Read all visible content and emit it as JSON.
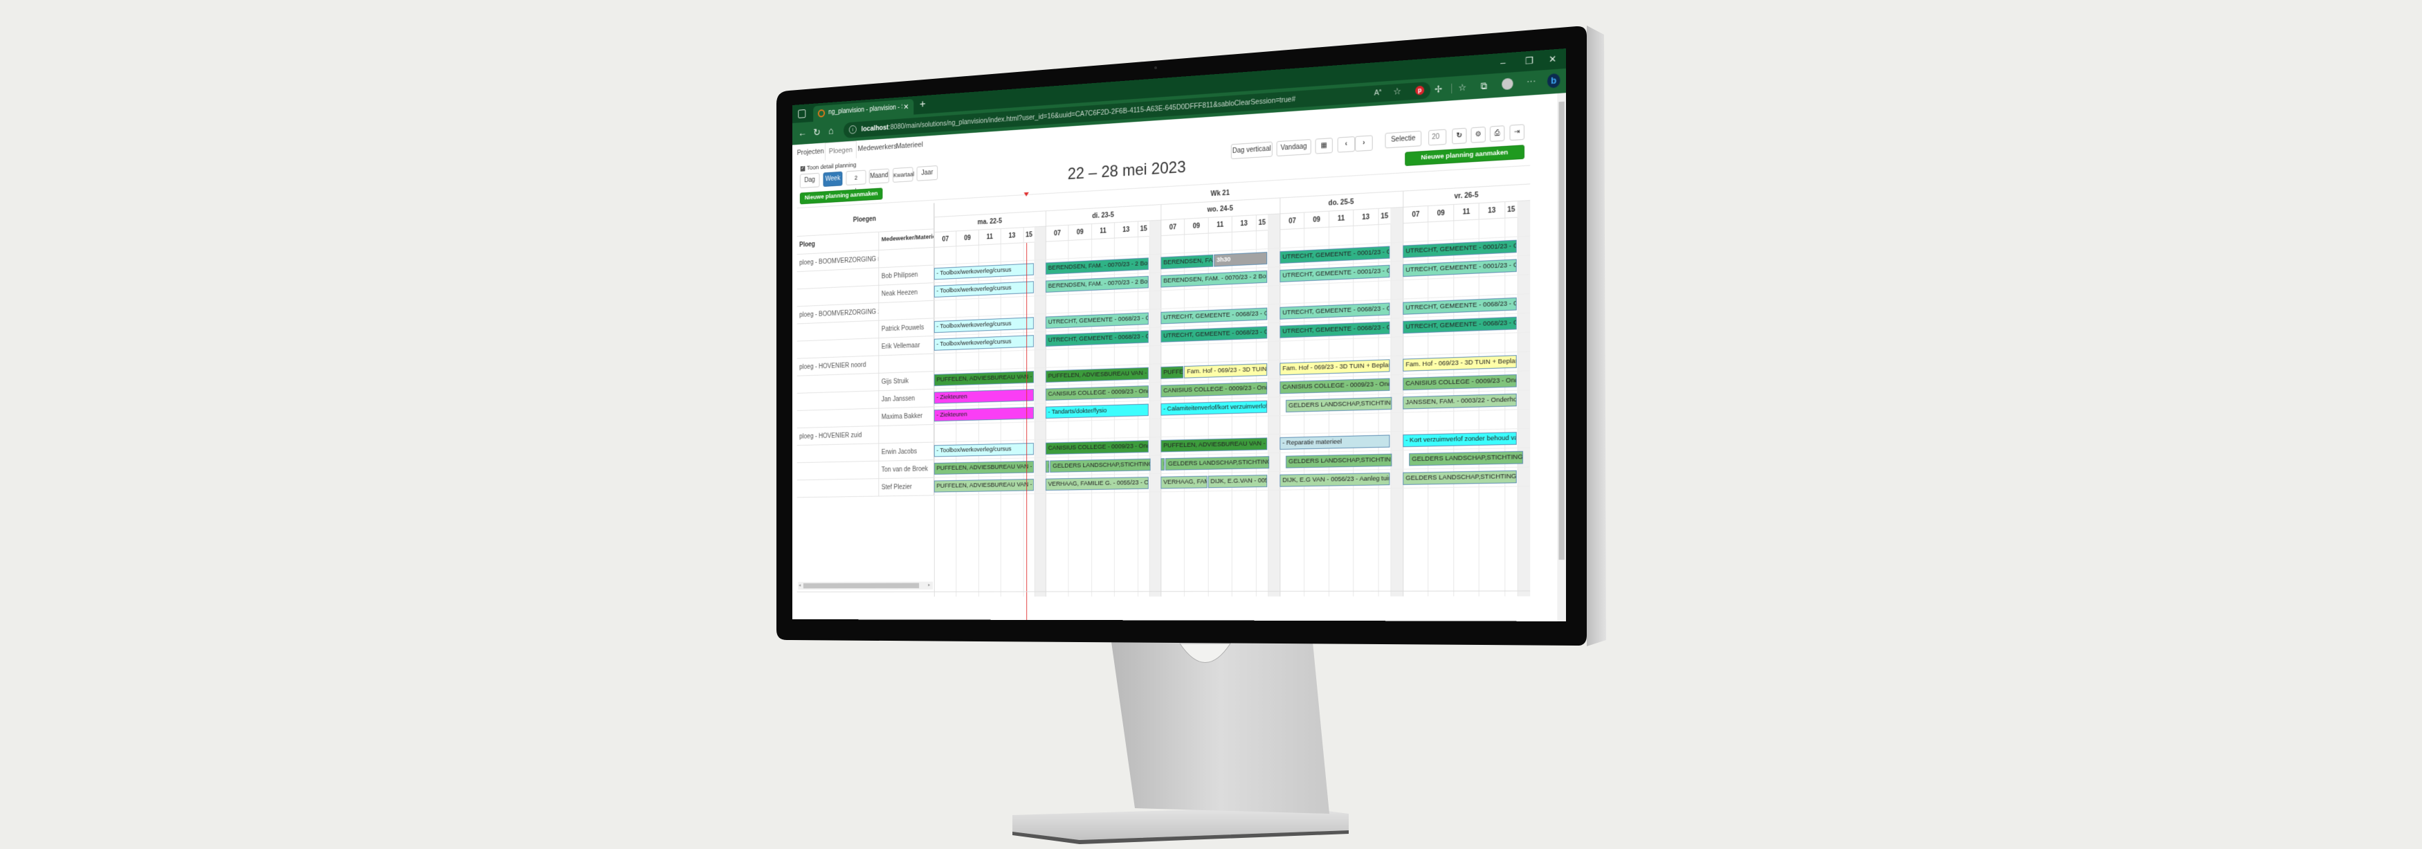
{
  "browser": {
    "tab_title": "ng_planvision - planvision - Serv",
    "url_host": "localhost",
    "url_path": ":8080/main/solutions/ng_planvision/index.html?user_id=16&uuid=CA7C6F2D-2F6B-4115-A63E-645D0DFFF811&sabloClearSession=true#",
    "window_controls": {
      "minimize": "–",
      "restore": "❐",
      "close": "✕"
    },
    "toolbar_icons": [
      "read-aloud-icon",
      "favorite-settings-icon",
      "pinterest-icon",
      "extensions-icon",
      "favorites-icon",
      "collections-icon",
      "profile-icon",
      "more-icon",
      "bing-icon"
    ]
  },
  "app": {
    "nav_tabs": [
      {
        "label": "Projecten",
        "active": false
      },
      {
        "label": "Ploegen",
        "active": true
      },
      {
        "label": "Medewerkers",
        "active": false
      },
      {
        "label": "Materieel",
        "active": false
      }
    ],
    "detail_checkbox": {
      "label": "Toon detail planning",
      "checked": true
    },
    "view_buttons": [
      {
        "label": "Dag",
        "active": false
      },
      {
        "label": "Week",
        "active": true
      },
      {
        "label": "2 weken",
        "active": false
      },
      {
        "label": "Maand",
        "active": false
      },
      {
        "label": "Kwartaal",
        "active": false
      },
      {
        "label": "Jaar",
        "active": false
      }
    ],
    "new_planning_label": "Nieuwe planning aanmaken",
    "period_title": "22 – 28 mei 2023",
    "toolbar": {
      "dag_verticaal": "Dag verticaal",
      "vandaag": "Vandaag",
      "selectie": "Selectie",
      "selection_count": "20"
    },
    "accent_green": "#1f9a1f",
    "accent_blue": "#337ab7"
  },
  "grid": {
    "header_ploegen": "Ploegen",
    "col_ploeg": "Ploeg",
    "col_member": "Medewerker/Materieel",
    "week_label": "Wk 21",
    "days": [
      "ma. 22-5",
      "di. 23-5",
      "wo. 24-5",
      "do. 25-5",
      "vr. 26-5"
    ],
    "hours": [
      "07",
      "09",
      "11",
      "13",
      "15"
    ],
    "now_marker": {
      "day": 0,
      "hour": 15.3,
      "color": "#e03030"
    },
    "colors": {
      "toolbox": "#cdfdfd",
      "teal_dark": "#2fb386",
      "teal_light": "#84dcba",
      "green_dark": "#3c9c3c",
      "green_mid": "#80c47c",
      "green_light": "#abd9a5",
      "yellow": "#ffffa8",
      "magenta": "#fa3ef5",
      "cyan": "#3cfdfd",
      "gray": "#a3a3a3",
      "repair": "#c4e3ea"
    },
    "rows": [
      {
        "ploeg": "ploeg - BOOMVERZORGING noord",
        "member": "",
        "bars": []
      },
      {
        "ploeg": "",
        "member": "Bob Philipsen",
        "bars": [
          {
            "day": 0,
            "from": 7,
            "to": 16,
            "label": "- Toolbox/werkoverleg/cursus",
            "color": "toolbox"
          },
          {
            "day": 1,
            "from": 7,
            "to": 16,
            "label": "BERENDSEN, FAM. - 0070/23 - 2 Bomen Roo",
            "color": "teal_dark"
          },
          {
            "day": 2,
            "from": 7,
            "to": 11.5,
            "label": "BERENDSEN, FAM. - 0070/23",
            "color": "teal_dark"
          },
          {
            "day": 2,
            "from": 11.5,
            "to": 16,
            "label": "3h30",
            "color": "gray"
          },
          {
            "day": 3,
            "from": 7,
            "to": 16,
            "label": "UTRECHT, GEMEENTE - 0001/23 - Gemeente",
            "color": "teal_dark"
          },
          {
            "day": 4,
            "from": 7,
            "to": 16,
            "label": "UTRECHT, GEMEENTE - 0001/23 - Gemeente",
            "color": "teal_dark"
          }
        ]
      },
      {
        "ploeg": "",
        "member": "Neak Heezen",
        "bars": [
          {
            "day": 0,
            "from": 7,
            "to": 16,
            "label": "- Toolbox/werkoverleg/cursus",
            "color": "toolbox"
          },
          {
            "day": 1,
            "from": 7,
            "to": 16,
            "label": "BERENDSEN, FAM. - 0070/23 - 2 Bomen Roo",
            "color": "teal_light"
          },
          {
            "day": 2,
            "from": 7,
            "to": 16,
            "label": "BERENDSEN, FAM. - 0070/23 - 2 Bomen Roo",
            "color": "teal_light"
          },
          {
            "day": 3,
            "from": 7,
            "to": 16,
            "label": "UTRECHT, GEMEENTE - 0001/23 - Gemeente",
            "color": "teal_light"
          },
          {
            "day": 4,
            "from": 7,
            "to": 16,
            "label": "UTRECHT, GEMEENTE - 0001/23 - Gemeente",
            "color": "teal_light"
          }
        ]
      },
      {
        "ploeg": "ploeg - BOOMVERZORGING zuid",
        "member": "",
        "bars": []
      },
      {
        "ploeg": "",
        "member": "Patrick Pouwels",
        "bars": [
          {
            "day": 0,
            "from": 7,
            "to": 16,
            "label": "- Toolbox/werkoverleg/cursus",
            "color": "toolbox"
          },
          {
            "day": 1,
            "from": 7,
            "to": 16,
            "label": "UTRECHT, GEMEENTE - 0068/23 - Gemeente",
            "color": "teal_light"
          },
          {
            "day": 2,
            "from": 7,
            "to": 16,
            "label": "UTRECHT, GEMEENTE - 0068/23 - Gemeente",
            "color": "teal_light"
          },
          {
            "day": 3,
            "from": 7,
            "to": 16,
            "label": "UTRECHT, GEMEENTE - 0068/23 - Gemeente",
            "color": "teal_light"
          },
          {
            "day": 4,
            "from": 7,
            "to": 16,
            "label": "UTRECHT, GEMEENTE - 0068/23 - Gemeente",
            "color": "teal_light"
          }
        ]
      },
      {
        "ploeg": "",
        "member": "Erik Vellemaar",
        "bars": [
          {
            "day": 0,
            "from": 7,
            "to": 16,
            "label": "- Toolbox/werkoverleg/cursus",
            "color": "toolbox"
          },
          {
            "day": 1,
            "from": 7,
            "to": 16,
            "label": "UTRECHT, GEMEENTE - 0068/23 - Gemeente",
            "color": "teal_dark"
          },
          {
            "day": 2,
            "from": 7,
            "to": 16,
            "label": "UTRECHT, GEMEENTE - 0068/23 - Gemeente",
            "color": "teal_dark"
          },
          {
            "day": 3,
            "from": 7,
            "to": 16,
            "label": "UTRECHT, GEMEENTE - 0068/23 - Gemeente",
            "color": "teal_dark"
          },
          {
            "day": 4,
            "from": 7,
            "to": 16,
            "label": "UTRECHT, GEMEENTE - 0068/23 - Gemeente",
            "color": "teal_dark"
          }
        ]
      },
      {
        "ploeg": "ploeg - HOVENIER noord",
        "member": "",
        "bars": []
      },
      {
        "ploeg": "",
        "member": "Gijs Struik",
        "bars": [
          {
            "day": 0,
            "from": 7,
            "to": 16,
            "label": "PUFFELEN, ADVIESBUREAU VAN - 0005/23",
            "color": "green_dark"
          },
          {
            "day": 1,
            "from": 7,
            "to": 16,
            "label": "PUFFELEN, ADVIESBUREAU VAN - 0005/23",
            "color": "green_dark"
          },
          {
            "day": 2,
            "from": 7,
            "to": 9,
            "label": "PUFFELEN, ADVIESBUREAU VAN - 0005/23",
            "color": "green_dark"
          },
          {
            "day": 2,
            "from": 9,
            "to": 16,
            "label": "Fam. Hof - 069/23 - 3D TUIN + Beplantingsplan",
            "color": "yellow"
          },
          {
            "day": 3,
            "from": 7,
            "to": 16,
            "label": "Fam. Hof - 069/23 - 3D TUIN + Beplantingsplan",
            "color": "yellow"
          },
          {
            "day": 4,
            "from": 7,
            "to": 16,
            "label": "Fam. Hof - 069/23 - 3D TUIN + Beplantingsplan",
            "color": "yellow"
          }
        ]
      },
      {
        "ploeg": "",
        "member": "Jan Janssen",
        "bars": [
          {
            "day": 0,
            "from": 7,
            "to": 16,
            "label": "- Ziekteuren",
            "color": "magenta"
          },
          {
            "day": 1,
            "from": 7,
            "to": 16,
            "label": "CANISIUS COLLEGE - 0009/23 - Onderhoud Park",
            "color": "green_mid"
          },
          {
            "day": 2,
            "from": 7,
            "to": 16,
            "label": "CANISIUS COLLEGE - 0009/23 - Onderhoud Park",
            "color": "green_mid"
          },
          {
            "day": 3,
            "from": 7,
            "to": 16,
            "label": "CANISIUS COLLEGE - 0009/23 - Onderhoud Park",
            "color": "green_mid"
          },
          {
            "day": 4,
            "from": 7,
            "to": 16,
            "label": "CANISIUS COLLEGE - 0009/23 - Onderhoud Park",
            "color": "green_mid"
          }
        ]
      },
      {
        "ploeg": "",
        "member": "Maxima Bakker",
        "bars": [
          {
            "day": 0,
            "from": 7,
            "to": 16,
            "label": "- Ziekteuren",
            "color": "magenta"
          },
          {
            "day": 1,
            "from": 7,
            "to": 16,
            "label": "- Tandarts/dokter/fysio",
            "color": "cyan"
          },
          {
            "day": 2,
            "from": 7,
            "to": 16,
            "label": "- Calamiteitenverlof/kort verzuimverlof met behoud van loon",
            "color": "cyan"
          },
          {
            "day": 3,
            "from": 7.5,
            "to": 16.2,
            "label": "GELDERS LANDSCHAP,STICHTING - 0007/23",
            "color": "green_light"
          },
          {
            "day": 4,
            "from": 7,
            "to": 16,
            "label": "JANSSEN, FAM. - 0003/22 - Onderhoud tuin fam.",
            "color": "green_light"
          }
        ]
      },
      {
        "ploeg": "ploeg - HOVENIER zuid",
        "member": "",
        "bars": []
      },
      {
        "ploeg": "",
        "member": "Erwin Jacobs",
        "bars": [
          {
            "day": 0,
            "from": 7,
            "to": 16,
            "label": "- Toolbox/werkoverleg/cursus",
            "color": "toolbox"
          },
          {
            "day": 1,
            "from": 7,
            "to": 16,
            "label": "CANISIUS COLLEGE - 0009/23 - Onderhoud Park",
            "color": "green_dark"
          },
          {
            "day": 2,
            "from": 7,
            "to": 16,
            "label": "PUFFELEN, ADVIESBUREAU VAN - 0006/23",
            "color": "green_dark"
          },
          {
            "day": 3,
            "from": 7,
            "to": 16,
            "label": "- Reparatie materieel",
            "color": "repair"
          },
          {
            "day": 4,
            "from": 7,
            "to": 16,
            "label": "- Kort verzuimverlof zonder behoud van loon",
            "color": "cyan"
          }
        ]
      },
      {
        "ploeg": "",
        "member": "Ton van de Broek",
        "bars": [
          {
            "day": 0,
            "from": 7,
            "to": 16,
            "label": "PUFFELEN, ADVIESBUREAU VAN - 0005/23",
            "color": "green_mid"
          },
          {
            "day": 1,
            "from": 7,
            "to": 7.4,
            "label": "P",
            "color": "green_mid"
          },
          {
            "day": 1,
            "from": 7.4,
            "to": 16.2,
            "label": "GELDERS LANDSCHAP,STICHTING - 0007/23",
            "color": "green_mid"
          },
          {
            "day": 2,
            "from": 7,
            "to": 7.4,
            "label": "P",
            "color": "green_mid"
          },
          {
            "day": 2,
            "from": 7.4,
            "to": 16.2,
            "label": "GELDERS LANDSCHAP,STICHTING - 0007/23",
            "color": "green_mid"
          },
          {
            "day": 3,
            "from": 7.5,
            "to": 16.2,
            "label": "GELDERS LANDSCHAP,STICHTING - 0007/23",
            "color": "green_mid"
          },
          {
            "day": 4,
            "from": 7.5,
            "to": 16.5,
            "label": "GELDERS LANDSCHAP,STICHTING - 0007/23",
            "color": "green_mid"
          }
        ]
      },
      {
        "ploeg": "",
        "member": "Stef Plezier",
        "bars": [
          {
            "day": 0,
            "from": 7,
            "to": 16,
            "label": "PUFFELEN, ADVIESBUREAU VAN - 0005/23",
            "color": "green_light"
          },
          {
            "day": 1,
            "from": 7,
            "to": 16,
            "label": "VERHAAG, FAMILIE G. - 0055/23 - Onderhoud",
            "color": "green_light"
          },
          {
            "day": 2,
            "from": 7,
            "to": 11,
            "label": "VERHAAG, FAMILIE G. - 0055/23",
            "color": "green_light"
          },
          {
            "day": 2,
            "from": 11,
            "to": 16,
            "label": "DIJK, E.G.VAN - 0056/23",
            "color": "green_light"
          },
          {
            "day": 3,
            "from": 7,
            "to": 16,
            "label": "DIJK, E.G VAN - 0056/23 - Aanleg tuin van Dijk",
            "color": "green_light"
          },
          {
            "day": 4,
            "from": 7,
            "to": 16,
            "label": "GELDERS LANDSCHAP,STICHTING - 0007/23",
            "color": "green_light"
          }
        ]
      }
    ]
  }
}
